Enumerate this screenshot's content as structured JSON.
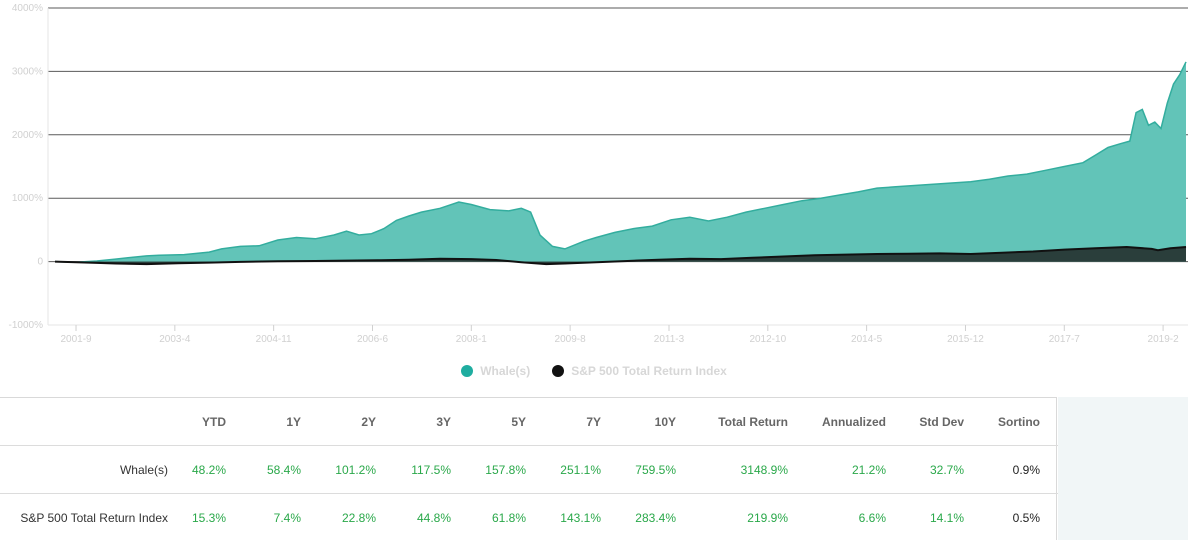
{
  "chart_data": {
    "type": "area",
    "ylim": [
      -1000,
      4000
    ],
    "yticks": [
      -1000,
      0,
      1000,
      2000,
      3000,
      4000
    ],
    "ytick_labels": [
      "-1000%",
      "0",
      "1000%",
      "2000%",
      "3000%",
      "4000%"
    ],
    "xlim": [
      2001.25,
      2019.45
    ],
    "xticks": [
      2001.667,
      2003.25,
      2004.833,
      2006.417,
      2008.0,
      2009.583,
      2011.167,
      2012.75,
      2014.333,
      2015.917,
      2017.5,
      2019.083
    ],
    "xtick_labels": [
      "2001-9",
      "2003-4",
      "2004-11",
      "2006-6",
      "2008-1",
      "2009-8",
      "2011-3",
      "2012-10",
      "2014-5",
      "2015-12",
      "2017-7",
      "2019-2"
    ],
    "grid": "horizontal",
    "legend_position": "bottom-center",
    "series": [
      {
        "name": "Whale(s)",
        "color": "#62c4b8",
        "line_color": "#33ad9e",
        "points": [
          [
            2001.33,
            0
          ],
          [
            2001.67,
            -10
          ],
          [
            2002.0,
            10
          ],
          [
            2002.3,
            40
          ],
          [
            2002.5,
            60
          ],
          [
            2002.8,
            90
          ],
          [
            2003.0,
            100
          ],
          [
            2003.4,
            110
          ],
          [
            2003.8,
            150
          ],
          [
            2004.0,
            200
          ],
          [
            2004.3,
            240
          ],
          [
            2004.6,
            250
          ],
          [
            2004.9,
            340
          ],
          [
            2005.2,
            380
          ],
          [
            2005.5,
            360
          ],
          [
            2005.8,
            420
          ],
          [
            2006.0,
            480
          ],
          [
            2006.2,
            420
          ],
          [
            2006.4,
            440
          ],
          [
            2006.6,
            520
          ],
          [
            2006.8,
            650
          ],
          [
            2007.0,
            720
          ],
          [
            2007.2,
            780
          ],
          [
            2007.5,
            840
          ],
          [
            2007.8,
            940
          ],
          [
            2008.0,
            900
          ],
          [
            2008.3,
            820
          ],
          [
            2008.6,
            800
          ],
          [
            2008.8,
            840
          ],
          [
            2008.95,
            780
          ],
          [
            2009.1,
            420
          ],
          [
            2009.3,
            240
          ],
          [
            2009.5,
            200
          ],
          [
            2009.8,
            320
          ],
          [
            2010.0,
            380
          ],
          [
            2010.3,
            460
          ],
          [
            2010.6,
            520
          ],
          [
            2010.9,
            560
          ],
          [
            2011.2,
            660
          ],
          [
            2011.5,
            700
          ],
          [
            2011.8,
            640
          ],
          [
            2012.1,
            700
          ],
          [
            2012.4,
            780
          ],
          [
            2012.7,
            840
          ],
          [
            2013.0,
            900
          ],
          [
            2013.3,
            960
          ],
          [
            2013.6,
            1000
          ],
          [
            2013.9,
            1050
          ],
          [
            2014.2,
            1100
          ],
          [
            2014.5,
            1160
          ],
          [
            2014.8,
            1180
          ],
          [
            2015.1,
            1200
          ],
          [
            2015.4,
            1220
          ],
          [
            2015.7,
            1240
          ],
          [
            2016.0,
            1260
          ],
          [
            2016.3,
            1300
          ],
          [
            2016.6,
            1350
          ],
          [
            2016.9,
            1380
          ],
          [
            2017.2,
            1440
          ],
          [
            2017.5,
            1500
          ],
          [
            2017.8,
            1560
          ],
          [
            2018.0,
            1680
          ],
          [
            2018.2,
            1800
          ],
          [
            2018.4,
            1860
          ],
          [
            2018.55,
            1900
          ],
          [
            2018.65,
            2350
          ],
          [
            2018.75,
            2400
          ],
          [
            2018.85,
            2150
          ],
          [
            2018.95,
            2200
          ],
          [
            2019.05,
            2100
          ],
          [
            2019.15,
            2500
          ],
          [
            2019.25,
            2800
          ],
          [
            2019.35,
            2950
          ],
          [
            2019.45,
            3150
          ]
        ]
      },
      {
        "name": "S&P 500 Total Return Index",
        "color": "#2a3e3b",
        "line_color": "#111111",
        "points": [
          [
            2001.33,
            0
          ],
          [
            2001.67,
            -10
          ],
          [
            2002.0,
            -20
          ],
          [
            2002.3,
            -30
          ],
          [
            2002.8,
            -40
          ],
          [
            2003.3,
            -25
          ],
          [
            2003.8,
            -15
          ],
          [
            2004.3,
            -5
          ],
          [
            2004.9,
            5
          ],
          [
            2005.5,
            10
          ],
          [
            2006.0,
            15
          ],
          [
            2006.5,
            20
          ],
          [
            2007.0,
            30
          ],
          [
            2007.5,
            45
          ],
          [
            2008.0,
            40
          ],
          [
            2008.4,
            25
          ],
          [
            2008.8,
            -10
          ],
          [
            2009.2,
            -40
          ],
          [
            2009.5,
            -30
          ],
          [
            2010.0,
            -10
          ],
          [
            2010.5,
            10
          ],
          [
            2011.0,
            30
          ],
          [
            2011.5,
            45
          ],
          [
            2012.0,
            40
          ],
          [
            2012.5,
            60
          ],
          [
            2013.0,
            80
          ],
          [
            2013.5,
            100
          ],
          [
            2014.0,
            110
          ],
          [
            2014.5,
            120
          ],
          [
            2015.0,
            125
          ],
          [
            2015.5,
            130
          ],
          [
            2016.0,
            120
          ],
          [
            2016.5,
            140
          ],
          [
            2017.0,
            160
          ],
          [
            2017.5,
            190
          ],
          [
            2018.0,
            210
          ],
          [
            2018.5,
            230
          ],
          [
            2018.9,
            200
          ],
          [
            2019.0,
            180
          ],
          [
            2019.2,
            210
          ],
          [
            2019.45,
            230
          ]
        ]
      }
    ]
  },
  "legend": [
    {
      "label": "Whale(s)",
      "color": "#1fada0"
    },
    {
      "label": "S&P 500 Total Return Index",
      "color": "#111111"
    }
  ],
  "table": {
    "columns": [
      "YTD",
      "1Y",
      "2Y",
      "3Y",
      "5Y",
      "7Y",
      "10Y",
      "Total Return",
      "Annualized",
      "Std Dev",
      "Sortino"
    ],
    "rows": [
      {
        "name": "Whale(s)",
        "values": [
          "48.2%",
          "58.4%",
          "101.2%",
          "117.5%",
          "157.8%",
          "251.1%",
          "759.5%",
          "3148.9%",
          "21.2%",
          "32.7%",
          "0.9%"
        ]
      },
      {
        "name": "S&P 500 Total Return Index",
        "values": [
          "15.3%",
          "7.4%",
          "22.8%",
          "44.8%",
          "61.8%",
          "143.1%",
          "283.4%",
          "219.9%",
          "6.6%",
          "14.1%",
          "0.5%"
        ]
      }
    ]
  }
}
